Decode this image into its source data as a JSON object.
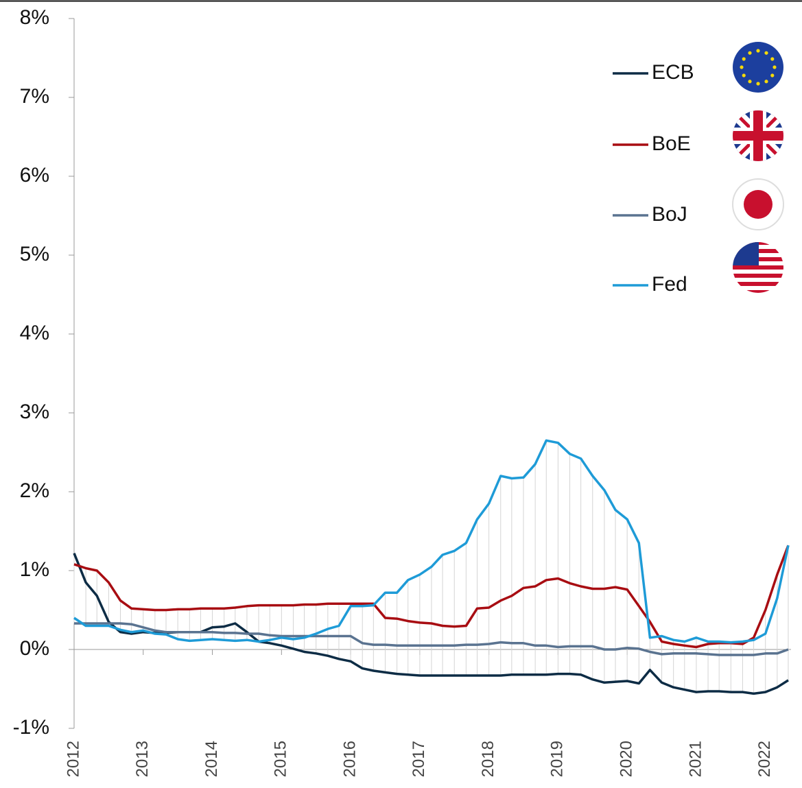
{
  "chart_data": {
    "type": "line",
    "x": [
      2012,
      2012.17,
      2012.33,
      2012.5,
      2012.67,
      2012.83,
      2013,
      2013.17,
      2013.33,
      2013.5,
      2013.67,
      2013.83,
      2014,
      2014.17,
      2014.33,
      2014.5,
      2014.67,
      2014.83,
      2015,
      2015.17,
      2015.33,
      2015.5,
      2015.67,
      2015.83,
      2016,
      2016.17,
      2016.33,
      2016.5,
      2016.67,
      2016.83,
      2017,
      2017.17,
      2017.33,
      2017.5,
      2017.67,
      2017.83,
      2018,
      2018.17,
      2018.33,
      2018.5,
      2018.67,
      2018.83,
      2019,
      2019.17,
      2019.33,
      2019.5,
      2019.67,
      2019.83,
      2020,
      2020.17,
      2020.33,
      2020.5,
      2020.67,
      2020.83,
      2021,
      2021.17,
      2021.33,
      2021.5,
      2021.67,
      2021.83,
      2022,
      2022.17,
      2022.33
    ],
    "series": [
      {
        "name": "ECB",
        "color": "#0d2c45",
        "values": [
          1.22,
          0.85,
          0.68,
          0.35,
          0.22,
          0.2,
          0.22,
          0.21,
          0.21,
          0.22,
          0.22,
          0.22,
          0.28,
          0.29,
          0.33,
          0.22,
          0.1,
          0.08,
          0.05,
          0.01,
          -0.03,
          -0.05,
          -0.08,
          -0.12,
          -0.15,
          -0.24,
          -0.27,
          -0.29,
          -0.31,
          -0.32,
          -0.33,
          -0.33,
          -0.33,
          -0.33,
          -0.33,
          -0.33,
          -0.33,
          -0.33,
          -0.32,
          -0.32,
          -0.32,
          -0.32,
          -0.31,
          -0.31,
          -0.32,
          -0.38,
          -0.42,
          -0.41,
          -0.4,
          -0.43,
          -0.26,
          -0.42,
          -0.48,
          -0.51,
          -0.54,
          -0.53,
          -0.53,
          -0.54,
          -0.54,
          -0.56,
          -0.54,
          -0.48,
          -0.39
        ]
      },
      {
        "name": "BoE",
        "color": "#a80d12",
        "values": [
          1.08,
          1.03,
          1.0,
          0.85,
          0.62,
          0.52,
          0.51,
          0.5,
          0.5,
          0.51,
          0.51,
          0.52,
          0.52,
          0.52,
          0.53,
          0.55,
          0.56,
          0.56,
          0.56,
          0.56,
          0.57,
          0.57,
          0.58,
          0.58,
          0.58,
          0.58,
          0.58,
          0.4,
          0.39,
          0.36,
          0.34,
          0.33,
          0.3,
          0.29,
          0.3,
          0.52,
          0.53,
          0.62,
          0.68,
          0.78,
          0.8,
          0.88,
          0.9,
          0.84,
          0.8,
          0.77,
          0.77,
          0.79,
          0.76,
          0.55,
          0.35,
          0.1,
          0.07,
          0.05,
          0.03,
          0.07,
          0.08,
          0.08,
          0.07,
          0.15,
          0.5,
          0.95,
          1.32
        ]
      },
      {
        "name": "BoJ",
        "color": "#5a7390",
        "values": [
          0.33,
          0.33,
          0.33,
          0.33,
          0.33,
          0.32,
          0.28,
          0.24,
          0.22,
          0.22,
          0.22,
          0.22,
          0.22,
          0.21,
          0.21,
          0.2,
          0.2,
          0.18,
          0.17,
          0.17,
          0.17,
          0.17,
          0.17,
          0.17,
          0.17,
          0.08,
          0.06,
          0.06,
          0.05,
          0.05,
          0.05,
          0.05,
          0.05,
          0.05,
          0.06,
          0.06,
          0.07,
          0.09,
          0.08,
          0.08,
          0.05,
          0.05,
          0.03,
          0.04,
          0.04,
          0.04,
          0.0,
          0.0,
          0.02,
          0.01,
          -0.03,
          -0.06,
          -0.05,
          -0.05,
          -0.05,
          -0.06,
          -0.07,
          -0.07,
          -0.07,
          -0.07,
          -0.05,
          -0.05,
          0.0
        ]
      },
      {
        "name": "Fed",
        "color": "#1e9bd7",
        "values": [
          0.4,
          0.3,
          0.3,
          0.3,
          0.25,
          0.22,
          0.24,
          0.2,
          0.19,
          0.13,
          0.11,
          0.12,
          0.13,
          0.12,
          0.11,
          0.12,
          0.1,
          0.12,
          0.15,
          0.13,
          0.15,
          0.2,
          0.26,
          0.3,
          0.55,
          0.55,
          0.56,
          0.72,
          0.72,
          0.88,
          0.95,
          1.05,
          1.2,
          1.25,
          1.35,
          1.65,
          1.85,
          2.2,
          2.17,
          2.18,
          2.35,
          2.65,
          2.62,
          2.48,
          2.42,
          2.2,
          2.02,
          1.77,
          1.65,
          1.35,
          0.15,
          0.17,
          0.12,
          0.1,
          0.15,
          0.1,
          0.1,
          0.09,
          0.1,
          0.12,
          0.2,
          0.65,
          1.32
        ]
      }
    ],
    "xlim": [
      2012,
      2022.37
    ],
    "xticks": [
      2012,
      2013,
      2014,
      2015,
      2016,
      2017,
      2018,
      2019,
      2020,
      2021,
      2022
    ],
    "ylim": [
      -1,
      8
    ],
    "yticks": [
      {
        "value": -1,
        "label": "-1%"
      },
      {
        "value": 0,
        "label": "0%"
      },
      {
        "value": 1,
        "label": "1%"
      },
      {
        "value": 2,
        "label": "2%"
      },
      {
        "value": 3,
        "label": "3%"
      },
      {
        "value": 4,
        "label": "4%"
      },
      {
        "value": 5,
        "label": "5%"
      },
      {
        "value": 6,
        "label": "6%"
      },
      {
        "value": 7,
        "label": "7%"
      },
      {
        "value": 8,
        "label": "8%"
      }
    ],
    "legend": "upper right"
  }
}
